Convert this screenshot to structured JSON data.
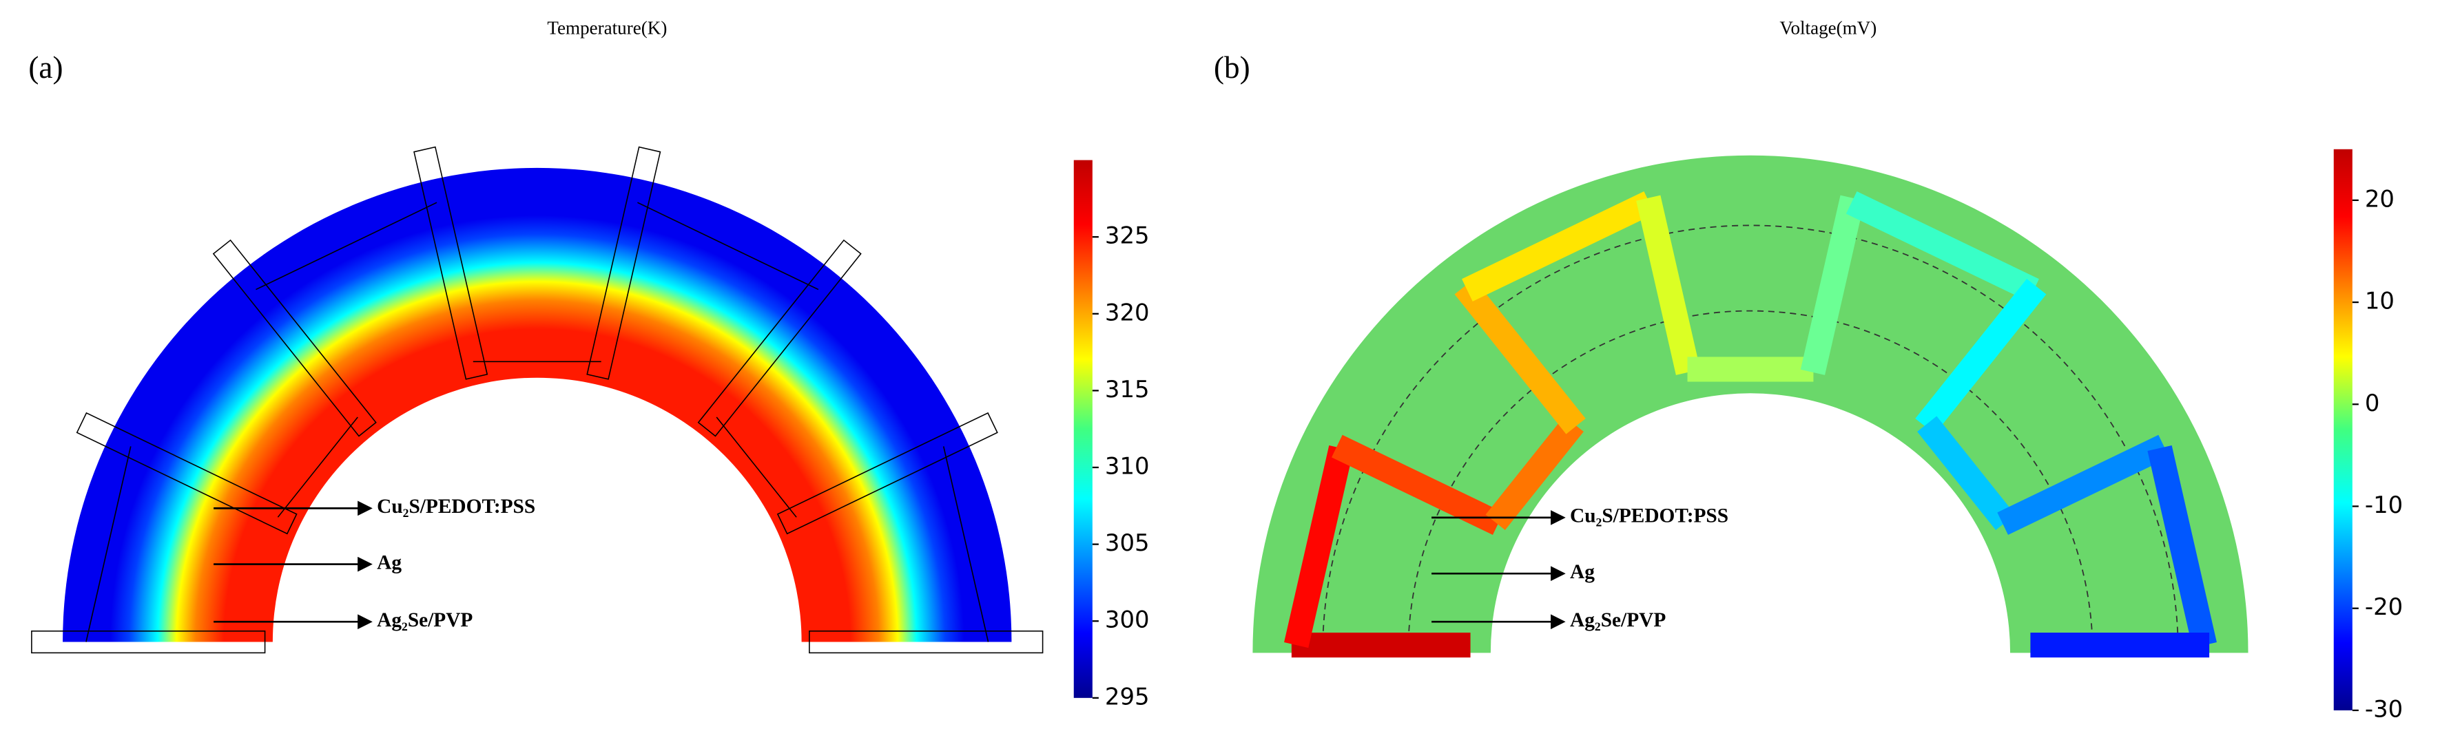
{
  "panels": [
    {
      "label": "(a)",
      "title": "Temperature(K)",
      "colorbar": {
        "lim": [
          295,
          330
        ],
        "ticks": [
          295,
          300,
          305,
          310,
          315,
          320,
          325
        ]
      },
      "annotations": [
        "Cu₂S/PEDOT:PSS",
        "Ag",
        "Ag₂Se/PVP"
      ]
    },
    {
      "label": "(b)",
      "title": "Voltage(mV)",
      "colorbar": {
        "lim": [
          -30,
          25
        ],
        "ticks": [
          -30,
          -20,
          -10,
          0,
          10,
          20
        ]
      },
      "annotations": [
        "Cu₂S/PEDOT:PSS",
        "Ag",
        "Ag₂Se/PVP"
      ]
    }
  ]
}
